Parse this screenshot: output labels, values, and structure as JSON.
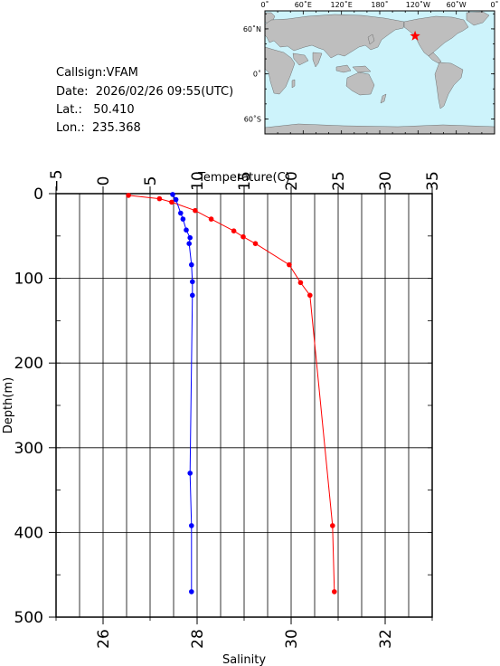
{
  "info": {
    "callsign": "Callsign:VFAM",
    "date": "Date:  2026/02/26 09:55(UTC)",
    "lat": "Lat.:   50.410",
    "lon": "Lon.:  235.368"
  },
  "colors": {
    "temperature": "#ff0000",
    "salinity": "#0000ff",
    "ocean": "#cdf3fb",
    "land": "#bebebe",
    "marker": "#ff0000"
  },
  "map": {
    "lon_ticks": [
      "0˚",
      "60˚E",
      "120˚E",
      "180˚",
      "120˚W",
      "60˚W",
      "0˚"
    ],
    "lat_ticks": [
      "60˚N",
      "0˚",
      "60˚S"
    ],
    "station": {
      "lon": 235.368,
      "lat": 50.41
    }
  },
  "chart_data": {
    "type": "line",
    "grid": true,
    "y": {
      "label": "Depth(m)",
      "range": [
        0,
        500
      ],
      "inverted": true,
      "ticks": [
        0,
        100,
        200,
        300,
        400,
        500
      ],
      "tick_labels": [
        "0",
        "100",
        "200",
        "300",
        "400",
        "500"
      ]
    },
    "x_top": {
      "label": "Temperature(C)",
      "range": [
        -5,
        35
      ],
      "ticks": [
        -5,
        0,
        5,
        10,
        15,
        20,
        25,
        30,
        35
      ],
      "tick_labels": [
        "−5",
        "0",
        "5",
        "10",
        "15",
        "20",
        "25",
        "30",
        "35"
      ]
    },
    "x_bottom": {
      "label": "Salinity",
      "range": [
        25,
        33
      ],
      "ticks": [
        26,
        28,
        30,
        32
      ],
      "tick_labels": [
        "26",
        "28",
        "30",
        "32"
      ]
    },
    "series": [
      {
        "variable": "temperature",
        "axis": "top",
        "points": [
          [
            2.7,
            2
          ],
          [
            6.0,
            6
          ],
          [
            7.3,
            10
          ],
          [
            9.8,
            20
          ],
          [
            11.5,
            30
          ],
          [
            13.9,
            44
          ],
          [
            14.9,
            51
          ],
          [
            16.2,
            59
          ],
          [
            19.8,
            84
          ],
          [
            21.0,
            105
          ],
          [
            22.0,
            120
          ],
          [
            24.4,
            392
          ],
          [
            24.6,
            470
          ]
        ]
      },
      {
        "variable": "salinity",
        "axis": "bottom",
        "points": [
          [
            27.48,
            1
          ],
          [
            27.55,
            7
          ],
          [
            27.65,
            23
          ],
          [
            27.7,
            30
          ],
          [
            27.77,
            43
          ],
          [
            27.85,
            52
          ],
          [
            27.83,
            59
          ],
          [
            27.88,
            84
          ],
          [
            27.9,
            104
          ],
          [
            27.9,
            120
          ],
          [
            27.85,
            330
          ],
          [
            27.88,
            392
          ],
          [
            27.88,
            470
          ]
        ]
      }
    ]
  }
}
